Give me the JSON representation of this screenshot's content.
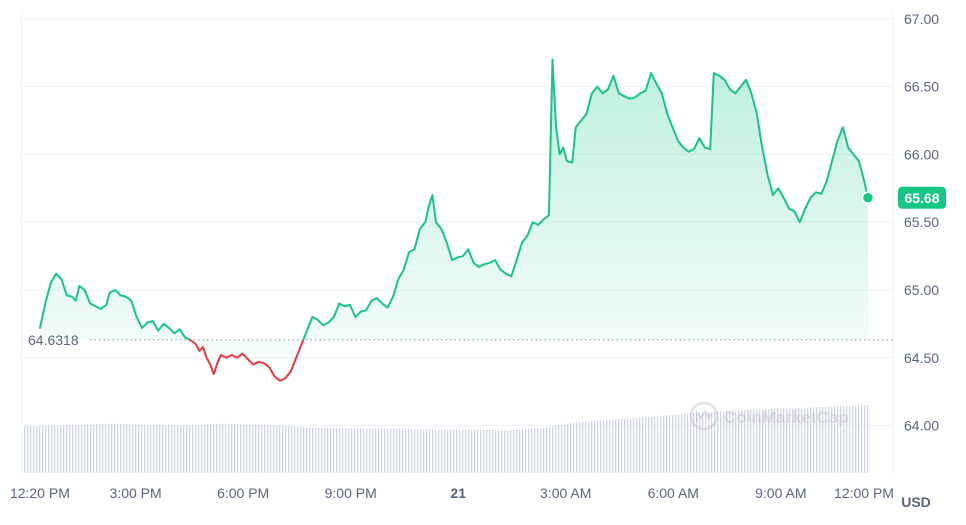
{
  "chart_data": {
    "type": "area",
    "currency_label": "USD",
    "baseline_value": 64.6318,
    "baseline_label": "64.6318",
    "last_value_label": "65.68",
    "watermark": "CoinMarketCap",
    "ylim": [
      63.65,
      67.05
    ],
    "y_ticks": [
      {
        "label": "67.00",
        "value": 67.0
      },
      {
        "label": "66.50",
        "value": 66.5
      },
      {
        "label": "66.00",
        "value": 66.0
      },
      {
        "label": "65.50",
        "value": 65.5
      },
      {
        "label": "65.00",
        "value": 65.0
      },
      {
        "label": "64.50",
        "value": 64.5
      },
      {
        "label": "64.00",
        "value": 64.0
      }
    ],
    "x_ticks": [
      {
        "label": "12:20 PM",
        "hour": 0.0
      },
      {
        "label": "3:00 PM",
        "hour": 2.67
      },
      {
        "label": "6:00 PM",
        "hour": 5.67
      },
      {
        "label": "9:00 PM",
        "hour": 8.67
      },
      {
        "label": "21",
        "hour": 11.67
      },
      {
        "label": "3:00 AM",
        "hour": 14.67
      },
      {
        "label": "6:00 AM",
        "hour": 17.67
      },
      {
        "label": "9:00 AM",
        "hour": 20.67
      },
      {
        "label": "12:00 PM",
        "hour": 23.67
      }
    ],
    "x_range_hours": [
      -0.5,
      23.8
    ],
    "colors": {
      "up": "#16c784",
      "down": "#ea3943",
      "grid": "#eff2f5",
      "axis_text": "#58667e",
      "volume": "#cfd6e4"
    },
    "series": {
      "price": [
        [
          0.0,
          64.72
        ],
        [
          0.15,
          64.9
        ],
        [
          0.3,
          65.05
        ],
        [
          0.45,
          65.12
        ],
        [
          0.6,
          65.08
        ],
        [
          0.75,
          64.96
        ],
        [
          0.9,
          64.95
        ],
        [
          1.0,
          64.92
        ],
        [
          1.1,
          65.03
        ],
        [
          1.25,
          65.0
        ],
        [
          1.4,
          64.9
        ],
        [
          1.55,
          64.88
        ],
        [
          1.7,
          64.86
        ],
        [
          1.85,
          64.89
        ],
        [
          1.95,
          64.98
        ],
        [
          2.1,
          65.0
        ],
        [
          2.25,
          64.96
        ],
        [
          2.4,
          64.95
        ],
        [
          2.55,
          64.92
        ],
        [
          2.7,
          64.8
        ],
        [
          2.85,
          64.72
        ],
        [
          3.0,
          64.76
        ],
        [
          3.15,
          64.77
        ],
        [
          3.3,
          64.7
        ],
        [
          3.45,
          64.75
        ],
        [
          3.6,
          64.72
        ],
        [
          3.75,
          64.68
        ],
        [
          3.9,
          64.71
        ],
        [
          4.05,
          64.65
        ],
        [
          4.2,
          64.63
        ],
        [
          4.35,
          64.6
        ],
        [
          4.45,
          64.55
        ],
        [
          4.55,
          64.58
        ],
        [
          4.65,
          64.5
        ],
        [
          4.75,
          64.45
        ],
        [
          4.85,
          64.38
        ],
        [
          4.95,
          64.46
        ],
        [
          5.05,
          64.52
        ],
        [
          5.2,
          64.5
        ],
        [
          5.35,
          64.52
        ],
        [
          5.5,
          64.5
        ],
        [
          5.65,
          64.53
        ],
        [
          5.8,
          64.49
        ],
        [
          5.95,
          64.45
        ],
        [
          6.1,
          64.47
        ],
        [
          6.25,
          64.46
        ],
        [
          6.4,
          64.43
        ],
        [
          6.55,
          64.36
        ],
        [
          6.7,
          64.33
        ],
        [
          6.85,
          64.35
        ],
        [
          7.0,
          64.4
        ],
        [
          7.15,
          64.5
        ],
        [
          7.3,
          64.6
        ],
        [
          7.45,
          64.7
        ],
        [
          7.6,
          64.8
        ],
        [
          7.75,
          64.78
        ],
        [
          7.9,
          64.74
        ],
        [
          8.05,
          64.76
        ],
        [
          8.2,
          64.8
        ],
        [
          8.35,
          64.9
        ],
        [
          8.5,
          64.88
        ],
        [
          8.65,
          64.89
        ],
        [
          8.8,
          64.8
        ],
        [
          8.95,
          64.84
        ],
        [
          9.1,
          64.85
        ],
        [
          9.25,
          64.92
        ],
        [
          9.4,
          64.94
        ],
        [
          9.55,
          64.9
        ],
        [
          9.7,
          64.87
        ],
        [
          9.85,
          64.95
        ],
        [
          10.0,
          65.08
        ],
        [
          10.15,
          65.15
        ],
        [
          10.3,
          65.28
        ],
        [
          10.45,
          65.3
        ],
        [
          10.6,
          65.45
        ],
        [
          10.75,
          65.5
        ],
        [
          10.85,
          65.62
        ],
        [
          10.95,
          65.7
        ],
        [
          11.05,
          65.5
        ],
        [
          11.2,
          65.45
        ],
        [
          11.35,
          65.35
        ],
        [
          11.5,
          65.22
        ],
        [
          11.65,
          65.24
        ],
        [
          11.8,
          65.25
        ],
        [
          11.95,
          65.3
        ],
        [
          12.1,
          65.2
        ],
        [
          12.25,
          65.17
        ],
        [
          12.4,
          65.19
        ],
        [
          12.55,
          65.2
        ],
        [
          12.7,
          65.22
        ],
        [
          12.85,
          65.15
        ],
        [
          13.0,
          65.12
        ],
        [
          13.15,
          65.1
        ],
        [
          13.3,
          65.22
        ],
        [
          13.45,
          65.35
        ],
        [
          13.6,
          65.4
        ],
        [
          13.75,
          65.5
        ],
        [
          13.9,
          65.48
        ],
        [
          14.05,
          65.52
        ],
        [
          14.2,
          65.55
        ],
        [
          14.3,
          66.7
        ],
        [
          14.4,
          66.2
        ],
        [
          14.5,
          66.0
        ],
        [
          14.6,
          66.05
        ],
        [
          14.7,
          65.95
        ],
        [
          14.85,
          65.94
        ],
        [
          14.95,
          66.2
        ],
        [
          15.1,
          66.25
        ],
        [
          15.25,
          66.3
        ],
        [
          15.4,
          66.45
        ],
        [
          15.55,
          66.5
        ],
        [
          15.7,
          66.45
        ],
        [
          15.85,
          66.48
        ],
        [
          16.0,
          66.58
        ],
        [
          16.15,
          66.45
        ],
        [
          16.3,
          66.43
        ],
        [
          16.45,
          66.41
        ],
        [
          16.6,
          66.42
        ],
        [
          16.75,
          66.45
        ],
        [
          16.9,
          66.47
        ],
        [
          17.05,
          66.6
        ],
        [
          17.2,
          66.52
        ],
        [
          17.35,
          66.45
        ],
        [
          17.5,
          66.3
        ],
        [
          17.65,
          66.2
        ],
        [
          17.8,
          66.1
        ],
        [
          17.95,
          66.05
        ],
        [
          18.1,
          66.02
        ],
        [
          18.25,
          66.04
        ],
        [
          18.4,
          66.12
        ],
        [
          18.55,
          66.05
        ],
        [
          18.7,
          66.04
        ],
        [
          18.8,
          66.6
        ],
        [
          18.95,
          66.58
        ],
        [
          19.1,
          66.55
        ],
        [
          19.25,
          66.48
        ],
        [
          19.4,
          66.45
        ],
        [
          19.55,
          66.5
        ],
        [
          19.7,
          66.55
        ],
        [
          19.85,
          66.45
        ],
        [
          20.0,
          66.3
        ],
        [
          20.15,
          66.05
        ],
        [
          20.3,
          65.85
        ],
        [
          20.45,
          65.7
        ],
        [
          20.6,
          65.75
        ],
        [
          20.75,
          65.68
        ],
        [
          20.9,
          65.6
        ],
        [
          21.05,
          65.58
        ],
        [
          21.2,
          65.5
        ],
        [
          21.35,
          65.6
        ],
        [
          21.5,
          65.68
        ],
        [
          21.65,
          65.72
        ],
        [
          21.8,
          65.71
        ],
        [
          21.95,
          65.8
        ],
        [
          22.1,
          65.95
        ],
        [
          22.25,
          66.1
        ],
        [
          22.4,
          66.2
        ],
        [
          22.55,
          66.05
        ],
        [
          22.7,
          66.0
        ],
        [
          22.85,
          65.95
        ],
        [
          23.0,
          65.8
        ],
        [
          23.1,
          65.68
        ]
      ],
      "volume": [
        [
          0.0,
          0.55
        ],
        [
          1.0,
          0.57
        ],
        [
          2.0,
          0.58
        ],
        [
          3.0,
          0.57
        ],
        [
          4.0,
          0.56
        ],
        [
          5.0,
          0.58
        ],
        [
          6.0,
          0.57
        ],
        [
          7.0,
          0.55
        ],
        [
          8.0,
          0.53
        ],
        [
          9.0,
          0.52
        ],
        [
          10.0,
          0.52
        ],
        [
          11.0,
          0.51
        ],
        [
          12.0,
          0.51
        ],
        [
          13.0,
          0.5
        ],
        [
          14.0,
          0.53
        ],
        [
          15.0,
          0.6
        ],
        [
          16.0,
          0.63
        ],
        [
          17.0,
          0.66
        ],
        [
          18.0,
          0.7
        ],
        [
          19.0,
          0.73
        ],
        [
          20.0,
          0.75
        ],
        [
          21.0,
          0.76
        ],
        [
          22.0,
          0.78
        ],
        [
          23.1,
          0.8
        ]
      ]
    }
  }
}
